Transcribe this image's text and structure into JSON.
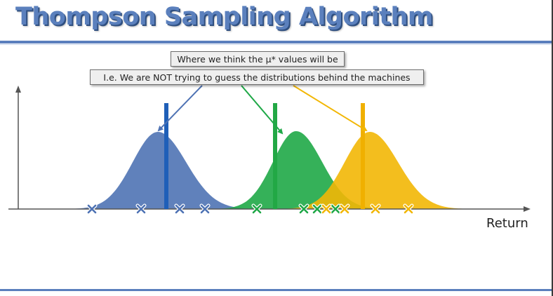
{
  "slide": {
    "title": "Thompson Sampling Algorithm",
    "callout_top": "Where we think the μ* values will be",
    "callout_bottom": "I.e. We are NOT trying to guess the distributions behind the machines",
    "x_axis_label": "Return"
  },
  "colors": {
    "title": "#5b80bd",
    "blue": "#4f73b4",
    "green": "#1fa847",
    "yellow": "#f2b705",
    "axis": "#555555"
  },
  "distributions": [
    {
      "name": "blue",
      "color": "#4f73b4",
      "dark": "#1f5fb8",
      "mean": 225,
      "sd": 36,
      "height": 110,
      "sample": 237,
      "trials": [
        131,
        201,
        256,
        292
      ]
    },
    {
      "name": "green",
      "color": "#1fa847",
      "dark": "#22a845",
      "mean": 422,
      "sd": 33,
      "height": 111,
      "sample": 392,
      "trials": [
        366,
        433,
        452,
        478
      ]
    },
    {
      "name": "yellow",
      "color": "#f2b705",
      "dark": "#f0b000",
      "mean": 527,
      "sd": 36,
      "height": 110,
      "sample": 517,
      "trials": [
        465,
        491,
        535,
        582
      ]
    }
  ]
}
